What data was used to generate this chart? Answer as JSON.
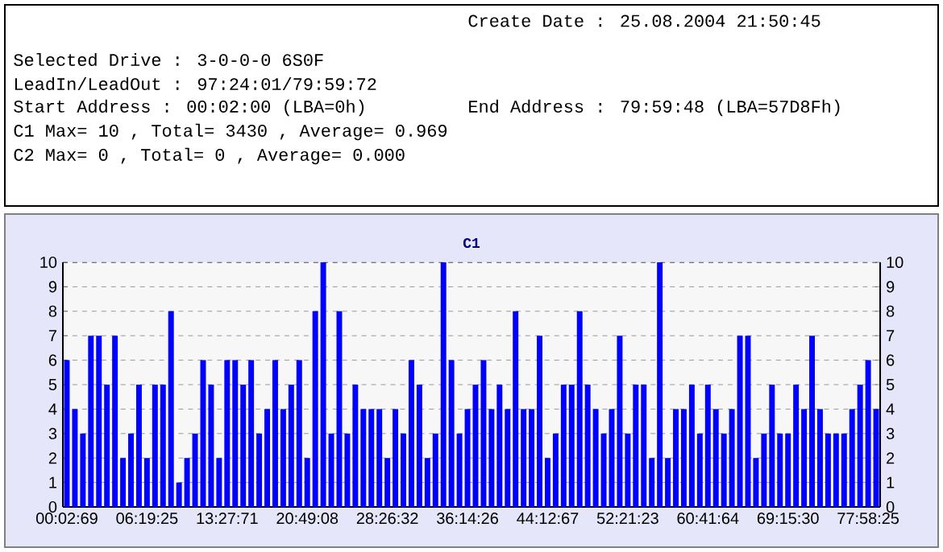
{
  "chart_data": {
    "type": "bar",
    "title": "C1",
    "categories": [
      "00:02:69",
      null,
      null,
      null,
      null,
      null,
      null,
      null,
      null,
      null,
      "06:19:25",
      null,
      null,
      null,
      null,
      null,
      null,
      null,
      null,
      null,
      "13:27:71",
      null,
      null,
      null,
      null,
      null,
      null,
      null,
      null,
      null,
      "20:49:08",
      null,
      null,
      null,
      null,
      null,
      null,
      null,
      null,
      null,
      "28:26:32",
      null,
      null,
      null,
      null,
      null,
      null,
      null,
      null,
      null,
      "36:14:26",
      null,
      null,
      null,
      null,
      null,
      null,
      null,
      null,
      null,
      "44:12:67",
      null,
      null,
      null,
      null,
      null,
      null,
      null,
      null,
      null,
      "52:21:23",
      null,
      null,
      null,
      null,
      null,
      null,
      null,
      null,
      null,
      "60:41:64",
      null,
      null,
      null,
      null,
      null,
      null,
      null,
      null,
      null,
      "69:15:30",
      null,
      null,
      null,
      null,
      null,
      null,
      null,
      null,
      null,
      "77:58:25",
      null
    ],
    "values": [
      6,
      4,
      3,
      7,
      7,
      5,
      7,
      2,
      3,
      5,
      2,
      5,
      5,
      8,
      1,
      2,
      3,
      6,
      5,
      2,
      6,
      6,
      5,
      6,
      3,
      4,
      6,
      4,
      5,
      6,
      2,
      8,
      10,
      3,
      8,
      3,
      5,
      4,
      4,
      4,
      2,
      4,
      3,
      6,
      5,
      2,
      3,
      10,
      6,
      3,
      4,
      5,
      6,
      4,
      5,
      4,
      8,
      4,
      4,
      7,
      2,
      3,
      5,
      5,
      8,
      5,
      4,
      3,
      4,
      7,
      3,
      5,
      5,
      2,
      10,
      2,
      4,
      4,
      5,
      3,
      5,
      4,
      3,
      4,
      7,
      7,
      2,
      3,
      5,
      3,
      3,
      5,
      4,
      7,
      4,
      3,
      3,
      3,
      4,
      5,
      6,
      4
    ],
    "color": "#0000ff",
    "ylim": [
      0,
      10
    ],
    "yticks": [
      0,
      1,
      2,
      3,
      4,
      5,
      6,
      7,
      8,
      9,
      10
    ],
    "y2lim": [
      0,
      10
    ],
    "y2ticks": [
      0,
      1,
      2,
      3,
      4,
      5,
      6,
      7,
      8,
      9,
      10
    ],
    "grid": "y",
    "annotations": [
      "Create Date    : 25.08.2004 21:50:45",
      "Selected Drive : 3-0-0-0 6S0F",
      "LeadIn/LeadOut : 97:24:01/79:59:72",
      "Start Address  : 00:02:00 (LBA=0h)",
      "End Address    : 79:59:48 (LBA=57D8Fh)",
      "C1 Max= 10 , Total= 3430 , Average= 0.969",
      "C2 Max= 0 , Total= 0 , Average= 0.000"
    ]
  }
}
